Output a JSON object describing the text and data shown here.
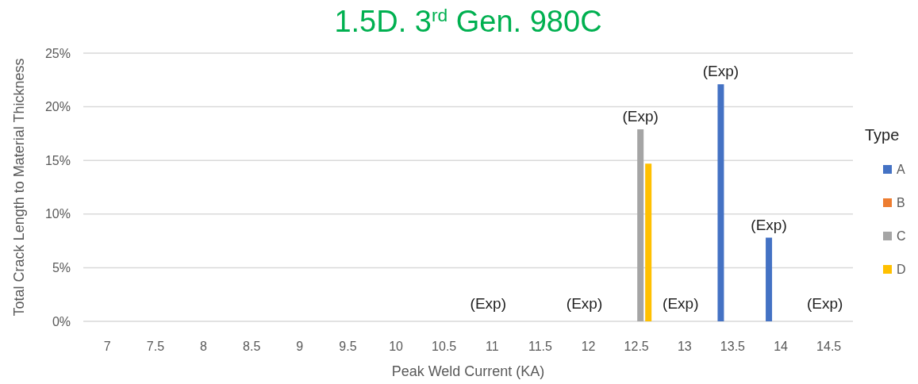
{
  "chart_data": {
    "type": "bar",
    "title": "1.5D. 3$^{rd}$ Gen. 980C",
    "xlabel": "Peak Weld Current (KA)",
    "ylabel": "Total Crack Length to Material Thickness",
    "legend_title": "Type",
    "categories": [
      "7",
      "7.5",
      "8",
      "8.5",
      "9",
      "9.5",
      "10",
      "10.5",
      "11",
      "11.5",
      "12",
      "12.5",
      "13",
      "13.5",
      "14",
      "14.5"
    ],
    "series": [
      {
        "name": "A",
        "color": "#4472c4",
        "values": [
          null,
          null,
          null,
          null,
          null,
          null,
          null,
          null,
          null,
          null,
          null,
          null,
          null,
          22.1,
          7.8,
          null
        ],
        "value_labels": [
          null,
          null,
          null,
          null,
          null,
          null,
          null,
          null,
          null,
          null,
          null,
          null,
          null,
          "(Exp)",
          "(Exp)",
          null
        ]
      },
      {
        "name": "B",
        "color": "#ed7d31",
        "values": [
          null,
          null,
          null,
          null,
          null,
          null,
          null,
          null,
          0,
          null,
          0,
          null,
          0,
          null,
          null,
          0
        ],
        "value_labels": [
          null,
          null,
          null,
          null,
          null,
          null,
          null,
          null,
          "(Exp)",
          null,
          "(Exp)",
          null,
          "(Exp)",
          null,
          null,
          "(Exp)"
        ]
      },
      {
        "name": "C",
        "color": "#a5a5a5",
        "values": [
          null,
          null,
          null,
          null,
          null,
          null,
          null,
          null,
          null,
          null,
          null,
          17.9,
          null,
          null,
          null,
          null
        ],
        "value_labels": [
          null,
          null,
          null,
          null,
          null,
          null,
          null,
          null,
          null,
          null,
          null,
          "(Exp)",
          null,
          null,
          null,
          null
        ]
      },
      {
        "name": "D",
        "color": "#ffc000",
        "values": [
          null,
          null,
          null,
          null,
          null,
          null,
          null,
          null,
          null,
          null,
          null,
          14.7,
          null,
          null,
          null,
          null
        ]
      }
    ],
    "ylim": [
      0,
      25
    ],
    "yticks": [
      {
        "value": 0,
        "label": "0%"
      },
      {
        "value": 5,
        "label": "5%"
      },
      {
        "value": 10,
        "label": "10%"
      },
      {
        "value": 15,
        "label": "15%"
      },
      {
        "value": 20,
        "label": "20%"
      },
      {
        "value": 25,
        "label": "25%"
      }
    ],
    "grid": "y",
    "legend": "right"
  }
}
